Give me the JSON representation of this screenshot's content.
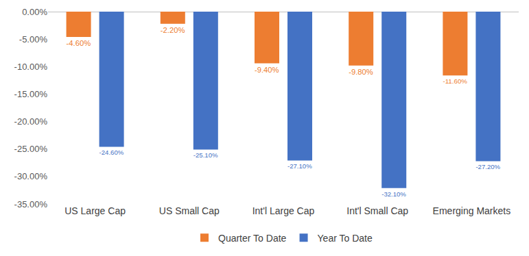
{
  "chart_data": {
    "type": "bar",
    "categories": [
      "US Large Cap",
      "US Small Cap",
      "Int'l Large Cap",
      "Int'l Small Cap",
      "Emerging Markets"
    ],
    "series": [
      {
        "name": "Quarter To Date",
        "color": "#ed7d31",
        "values": [
          -4.6,
          -2.2,
          -9.4,
          -9.8,
          -11.6
        ],
        "value_labels": [
          "-4.60%",
          "-2.20%",
          "-9.40%",
          "-9.80%",
          "-11.60%"
        ]
      },
      {
        "name": "Year To Date",
        "color": "#4472c4",
        "values": [
          -24.6,
          -25.1,
          -27.1,
          -32.1,
          -27.2
        ],
        "value_labels": [
          "-24.60%",
          "-25.10%",
          "-27.10%",
          "-32.10%",
          "-27.20%"
        ]
      }
    ],
    "ylim": [
      -35,
      0
    ],
    "yticks": [
      {
        "value": 0,
        "label": "0.00%"
      },
      {
        "value": -5,
        "label": "-5.00%"
      },
      {
        "value": -10,
        "label": "-10.00%"
      },
      {
        "value": -15,
        "label": "-15.00%"
      },
      {
        "value": -20,
        "label": "-20.00%"
      },
      {
        "value": -25,
        "label": "-25.00%"
      },
      {
        "value": -30,
        "label": "-30.00%"
      },
      {
        "value": -35,
        "label": "-35.00%"
      }
    ],
    "grid": false,
    "data_labels": true,
    "legend": "bottom"
  }
}
